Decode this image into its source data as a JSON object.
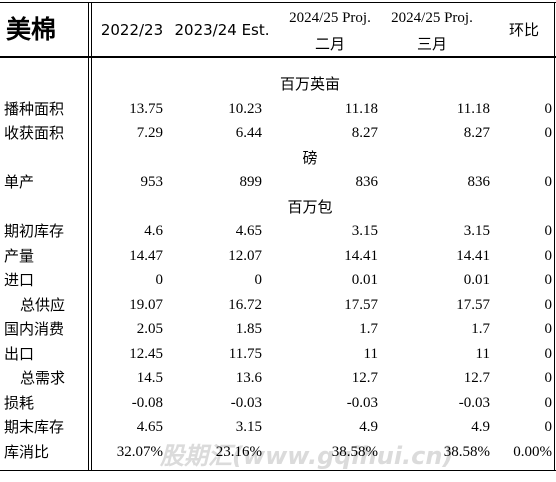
{
  "table": {
    "header": {
      "title": "美棉",
      "columns": [
        {
          "label": "2022/23"
        },
        {
          "label": "2023/24 Est."
        },
        {
          "label": "2024/25 Proj.",
          "sub": "二月"
        },
        {
          "label": "2024/25 Proj.",
          "sub": "三月"
        },
        {
          "label": "环比"
        }
      ]
    },
    "rows": [
      {
        "unit": "百万英亩"
      },
      [
        "播种面积",
        "13.75",
        "10.23",
        "11.18",
        "11.18",
        "0"
      ],
      [
        "收获面积",
        "7.29",
        "6.44",
        "8.27",
        "8.27",
        "0"
      ],
      {
        "unit": "磅"
      },
      [
        "单产",
        "953",
        "899",
        "836",
        "836",
        "0"
      ],
      {
        "unit": "百万包"
      },
      [
        "期初库存",
        "4.6",
        "4.65",
        "3.15",
        "3.15",
        "0"
      ],
      [
        "产量",
        "14.47",
        "12.07",
        "14.41",
        "14.41",
        "0"
      ],
      [
        "进口",
        "0",
        "0",
        "0.01",
        "0.01",
        "0"
      ],
      [
        "总供应",
        "19.07",
        "16.72",
        "17.57",
        "17.57",
        "0"
      ],
      [
        "国内消费",
        "2.05",
        "1.85",
        "1.7",
        "1.7",
        "0"
      ],
      [
        "出口",
        "12.45",
        "11.75",
        "11",
        "11",
        "0"
      ],
      [
        "总需求",
        "14.5",
        "13.6",
        "12.7",
        "12.7",
        "0"
      ],
      [
        "损耗",
        "-0.08",
        "-0.03",
        "-0.03",
        "-0.03",
        "0"
      ],
      [
        "期末库存",
        "4.65",
        "3.15",
        "4.9",
        "4.9",
        "0"
      ],
      [
        "库消比",
        "32.07%",
        "23.16%",
        "38.58%",
        "38.58%",
        "0.00%"
      ]
    ]
  },
  "watermark": "股期汇(www.gqihui.cn)"
}
